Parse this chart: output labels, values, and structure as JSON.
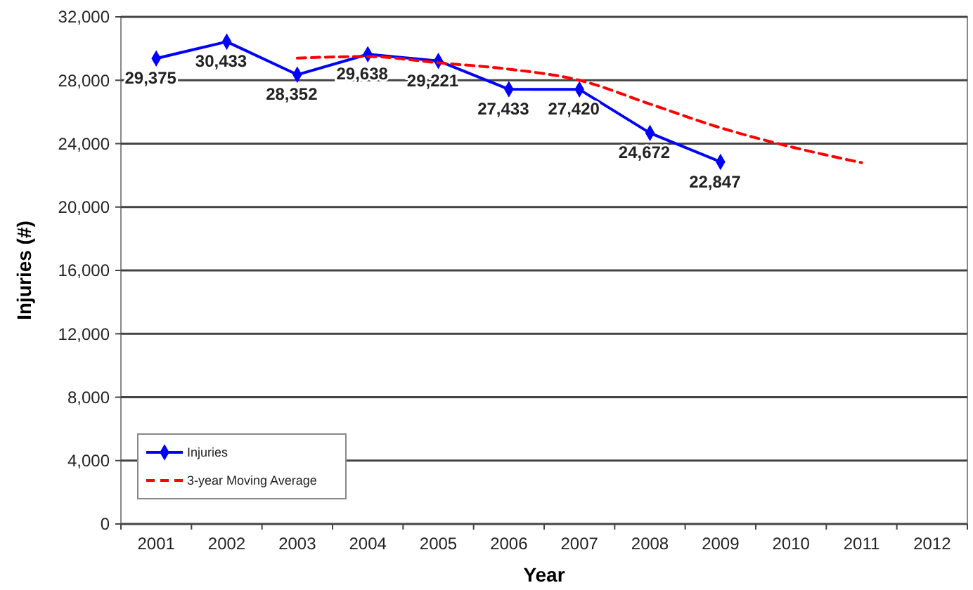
{
  "chart_data": {
    "type": "line",
    "xlabel": "Year",
    "ylabel": "Injuries (#)",
    "categories": [
      "2001",
      "2002",
      "2003",
      "2004",
      "2005",
      "2006",
      "2007",
      "2008",
      "2009",
      "2010",
      "2011",
      "2012"
    ],
    "series": [
      {
        "name": "Injuries",
        "color": "#0000ff",
        "marker": "diamond",
        "line_style": "solid",
        "values": [
          29375,
          30433,
          28352,
          29638,
          29221,
          27433,
          27420,
          24672,
          22847,
          null,
          null,
          null
        ],
        "value_labels": [
          "29,375",
          "30,433",
          "28,352",
          "29,638",
          "29,221",
          "27,433",
          "27,420",
          "24,672",
          "22,847",
          null,
          null,
          null
        ]
      },
      {
        "name": "3-year Moving Average",
        "color": "#ff0000",
        "marker": "none",
        "line_style": "dashed",
        "values": [
          null,
          null,
          29400,
          29500,
          29100,
          28700,
          28000,
          26500,
          25000,
          23800,
          22800,
          null
        ]
      }
    ],
    "ylim": [
      0,
      32000
    ],
    "yticks": [
      {
        "value": 0,
        "label": "0"
      },
      {
        "value": 4000,
        "label": "4,000"
      },
      {
        "value": 8000,
        "label": "8,000"
      },
      {
        "value": 12000,
        "label": "12,000"
      },
      {
        "value": 16000,
        "label": "16,000"
      },
      {
        "value": 20000,
        "label": "20,000"
      },
      {
        "value": 24000,
        "label": "24,000"
      },
      {
        "value": 28000,
        "label": "28,000"
      },
      {
        "value": 32000,
        "label": "32,000"
      }
    ],
    "grid": "y",
    "legend": "bottom left"
  }
}
